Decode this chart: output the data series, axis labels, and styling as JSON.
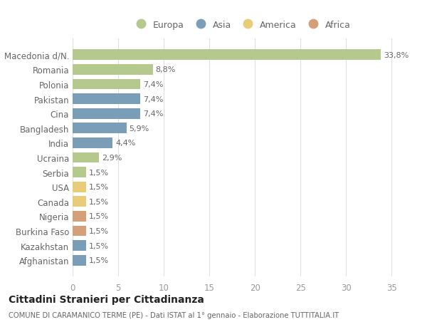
{
  "countries": [
    "Macedonia d/N.",
    "Romania",
    "Polonia",
    "Pakistan",
    "Cina",
    "Bangladesh",
    "India",
    "Ucraina",
    "Serbia",
    "USA",
    "Canada",
    "Nigeria",
    "Burkina Faso",
    "Kazakhstan",
    "Afghanistan"
  ],
  "values": [
    33.8,
    8.8,
    7.4,
    7.4,
    7.4,
    5.9,
    4.4,
    2.9,
    1.5,
    1.5,
    1.5,
    1.5,
    1.5,
    1.5,
    1.5
  ],
  "labels": [
    "33,8%",
    "8,8%",
    "7,4%",
    "7,4%",
    "7,4%",
    "5,9%",
    "4,4%",
    "2,9%",
    "1,5%",
    "1,5%",
    "1,5%",
    "1,5%",
    "1,5%",
    "1,5%",
    "1,5%"
  ],
  "continents": [
    "Europa",
    "Europa",
    "Europa",
    "Asia",
    "Asia",
    "Asia",
    "Asia",
    "Europa",
    "Europa",
    "America",
    "America",
    "Africa",
    "Africa",
    "Asia",
    "Asia"
  ],
  "colors": {
    "Europa": "#b5c98e",
    "Asia": "#7b9eb8",
    "America": "#e8cc7a",
    "Africa": "#d4a07a"
  },
  "legend_order": [
    "Europa",
    "Asia",
    "America",
    "Africa"
  ],
  "title": "Cittadini Stranieri per Cittadinanza",
  "subtitle": "COMUNE DI CARAMANICO TERME (PE) - Dati ISTAT al 1° gennaio - Elaborazione TUTTITALIA.IT",
  "xlim": [
    0,
    37
  ],
  "xticks": [
    0,
    5,
    10,
    15,
    20,
    25,
    30,
    35
  ],
  "bg_color": "#ffffff",
  "grid_color": "#e0e0e0"
}
